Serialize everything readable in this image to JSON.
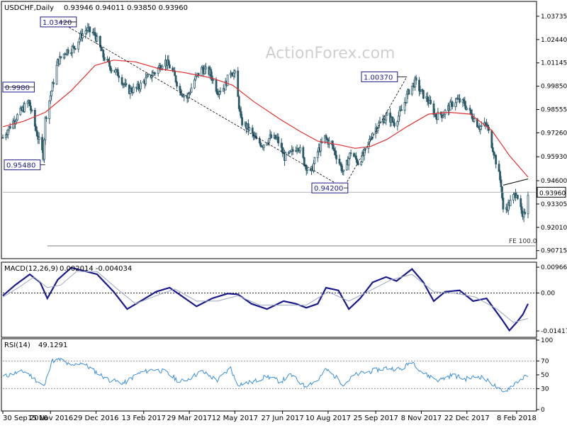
{
  "colors": {
    "background": "#ffffff",
    "candles": "#2a5a6a",
    "ma": "#e03030",
    "macd_line": "#1a1a8c",
    "macd_signal": "#9aa6c0",
    "rsi_line": "#3a8fd8",
    "frame": "#000000",
    "label_border": "#1a1a8c",
    "watermark": "#cfcfcf"
  },
  "header": {
    "symbol_tf": "USDCHF,Daily",
    "ohlc": "0.93946 0.94011 0.93850 0.93960",
    "watermark": "ActionForex.com"
  },
  "chart_data": [
    {
      "type": "candlestick",
      "title": "USDCHF,Daily",
      "ylim": [
        0.9035,
        1.0448
      ],
      "y_tick_labels": [
        "1.03735",
        "1.02440",
        "1.01145",
        "0.99850",
        "0.98555",
        "0.97260",
        "0.95930",
        "0.94600",
        "0.93305",
        "0.92010",
        "0.90715"
      ],
      "y_ticks": [
        1.03735,
        1.0244,
        1.01145,
        0.9985,
        0.98555,
        0.9726,
        0.9593,
        0.946,
        0.93305,
        0.9201,
        0.90715
      ],
      "x_tick_labels": [
        "30 Sep 2016",
        "15 Nov 2016",
        "29 Dec 2016",
        "13 Feb 2017",
        "29 Mar 2017",
        "12 May 2017",
        "27 Jun 2017",
        "10 Aug 2017",
        "25 Sep 2017",
        "8 Nov 2017",
        "22 Dec 2017",
        "8 Feb 2018"
      ],
      "x_tick_dates": [
        "2016-09-30",
        "2016-11-15",
        "2016-12-29",
        "2017-02-13",
        "2017-03-29",
        "2017-05-12",
        "2017-06-27",
        "2017-08-10",
        "2017-09-25",
        "2017-11-08",
        "2017-12-22",
        "2018-02-08"
      ],
      "x_range": [
        "2016-09-30",
        "2018-02-19"
      ],
      "close_path": [
        [
          "2016-09-30",
          0.97
        ],
        [
          "2016-10-10",
          0.979
        ],
        [
          "2016-10-25",
          0.99
        ],
        [
          "2016-11-01",
          0.974
        ],
        [
          "2016-11-08",
          0.96
        ],
        [
          "2016-11-10",
          0.98
        ],
        [
          "2016-11-22",
          1.012
        ],
        [
          "2016-11-30",
          1.018
        ],
        [
          "2016-12-08",
          1.02
        ],
        [
          "2016-12-15",
          1.027
        ],
        [
          "2016-12-20",
          1.03
        ],
        [
          "2016-12-28",
          1.027
        ],
        [
          "2017-01-05",
          1.015
        ],
        [
          "2017-01-12",
          1.009
        ],
        [
          "2017-01-20",
          1.005
        ],
        [
          "2017-01-28",
          0.996
        ],
        [
          "2017-02-06",
          0.997
        ],
        [
          "2017-02-15",
          1.002
        ],
        [
          "2017-02-25",
          1.007
        ],
        [
          "2017-03-05",
          1.013
        ],
        [
          "2017-03-12",
          1.008
        ],
        [
          "2017-03-20",
          0.996
        ],
        [
          "2017-03-27",
          0.992
        ],
        [
          "2017-04-03",
          1.002
        ],
        [
          "2017-04-10",
          1.008
        ],
        [
          "2017-04-18",
          1.006
        ],
        [
          "2017-04-25",
          0.996
        ],
        [
          "2017-05-02",
          0.998
        ],
        [
          "2017-05-08",
          1.007
        ],
        [
          "2017-05-12",
          1.005
        ],
        [
          "2017-05-18",
          0.979
        ],
        [
          "2017-05-25",
          0.975
        ],
        [
          "2017-06-02",
          0.968
        ],
        [
          "2017-06-08",
          0.966
        ],
        [
          "2017-06-15",
          0.97
        ],
        [
          "2017-06-22",
          0.969
        ],
        [
          "2017-06-29",
          0.959
        ],
        [
          "2017-07-05",
          0.961
        ],
        [
          "2017-07-12",
          0.966
        ],
        [
          "2017-07-18",
          0.956
        ],
        [
          "2017-07-24",
          0.95
        ],
        [
          "2017-07-31",
          0.962
        ],
        [
          "2017-08-07",
          0.97
        ],
        [
          "2017-08-14",
          0.965
        ],
        [
          "2017-08-21",
          0.956
        ],
        [
          "2017-08-25",
          0.95
        ],
        [
          "2017-09-01",
          0.962
        ],
        [
          "2017-09-08",
          0.956
        ],
        [
          "2017-09-15",
          0.962
        ],
        [
          "2017-09-22",
          0.973
        ],
        [
          "2017-09-29",
          0.978
        ],
        [
          "2017-10-06",
          0.982
        ],
        [
          "2017-10-13",
          0.978
        ],
        [
          "2017-10-20",
          0.985
        ],
        [
          "2017-10-27",
          0.996
        ],
        [
          "2017-11-02",
          1.001
        ],
        [
          "2017-11-08",
          0.995
        ],
        [
          "2017-11-15",
          0.99
        ],
        [
          "2017-11-22",
          0.982
        ],
        [
          "2017-11-29",
          0.983
        ],
        [
          "2017-12-05",
          0.987
        ],
        [
          "2017-12-12",
          0.991
        ],
        [
          "2017-12-19",
          0.989
        ],
        [
          "2017-12-27",
          0.982
        ],
        [
          "2018-01-03",
          0.976
        ],
        [
          "2018-01-10",
          0.977
        ],
        [
          "2018-01-17",
          0.962
        ],
        [
          "2018-01-24",
          0.944
        ],
        [
          "2018-01-26",
          0.929
        ],
        [
          "2018-02-02",
          0.934
        ],
        [
          "2018-02-08",
          0.94
        ],
        [
          "2018-02-14",
          0.924
        ],
        [
          "2018-02-16",
          0.929
        ],
        [
          "2018-02-19",
          0.9396
        ]
      ],
      "ma_path": [
        [
          "2016-09-30",
          0.976
        ],
        [
          "2016-10-20",
          0.979
        ],
        [
          "2016-11-10",
          0.984
        ],
        [
          "2016-12-05",
          0.996
        ],
        [
          "2016-12-28",
          1.01
        ],
        [
          "2017-01-15",
          1.013
        ],
        [
          "2017-02-05",
          1.012
        ],
        [
          "2017-03-01",
          1.008
        ],
        [
          "2017-03-25",
          1.006
        ],
        [
          "2017-04-20",
          1.003
        ],
        [
          "2017-05-10",
          0.999
        ],
        [
          "2017-05-30",
          0.99
        ],
        [
          "2017-06-25",
          0.98
        ],
        [
          "2017-07-15",
          0.973
        ],
        [
          "2017-07-31",
          0.968
        ],
        [
          "2017-08-20",
          0.966
        ],
        [
          "2017-09-05",
          0.964
        ],
        [
          "2017-09-20",
          0.965
        ],
        [
          "2017-10-06",
          0.969
        ],
        [
          "2017-10-25",
          0.976
        ],
        [
          "2017-11-15",
          0.983
        ],
        [
          "2017-12-05",
          0.984
        ],
        [
          "2017-12-25",
          0.983
        ],
        [
          "2018-01-15",
          0.974
        ],
        [
          "2018-02-01",
          0.96
        ],
        [
          "2018-02-19",
          0.948
        ]
      ],
      "marked_levels": [
        {
          "label": "1.03420",
          "date": "2016-11-24",
          "value": 1.0342,
          "side": "left"
        },
        {
          "label": "0.9980",
          "date": "2016-10-01",
          "value": 0.998,
          "side": "left"
        },
        {
          "label": "0.95480",
          "date": "2016-11-10",
          "value": 0.9548,
          "side": "left"
        },
        {
          "label": "0.94200",
          "date": "2017-08-25",
          "value": 0.942,
          "side": "left"
        },
        {
          "label": "1.00370",
          "date": "2017-10-25",
          "value": 1.0037,
          "side": "left"
        }
      ],
      "last_price": {
        "label": "0.93960",
        "value": 0.9396
      },
      "fe_line": {
        "label": "FE 100.0",
        "value": 0.9098,
        "from": "2016-11-12",
        "to": "2018-02-19"
      },
      "trendlines": [
        [
          [
            "2016-11-24",
            1.0342
          ],
          [
            "2017-08-25",
            0.942
          ]
        ],
        [
          [
            "2017-08-25",
            0.942
          ],
          [
            "2017-10-25",
            1.0037
          ]
        ],
        [
          [
            "2018-01-26",
            0.9435
          ],
          [
            "2018-02-19",
            0.947
          ]
        ]
      ]
    },
    {
      "type": "line",
      "title": "MACD(12,26,9)",
      "header_values": "0.002014 -0.004034",
      "ylim": [
        -0.016,
        0.011
      ],
      "y_tick_labels": [
        "0.009664",
        "0.00",
        "-0.014171"
      ],
      "y_ticks": [
        0.009664,
        0,
        -0.014171
      ],
      "zero_line": 0,
      "series": [
        {
          "role": "macd",
          "points": [
            [
              "2016-09-30",
              -0.001
            ],
            [
              "2016-10-12",
              0.003
            ],
            [
              "2016-10-26",
              0.007
            ],
            [
              "2016-11-05",
              0.004
            ],
            [
              "2016-11-12",
              -0.002
            ],
            [
              "2016-11-22",
              0.005
            ],
            [
              "2016-12-05",
              0.0095
            ],
            [
              "2016-12-20",
              0.008
            ],
            [
              "2016-12-30",
              0.007
            ],
            [
              "2017-01-15",
              0.0005
            ],
            [
              "2017-01-28",
              -0.006
            ],
            [
              "2017-02-10",
              -0.003
            ],
            [
              "2017-02-25",
              0.0005
            ],
            [
              "2017-03-10",
              0.002
            ],
            [
              "2017-03-25",
              -0.002
            ],
            [
              "2017-04-05",
              -0.005
            ],
            [
              "2017-04-20",
              -0.002
            ],
            [
              "2017-05-05",
              -0.0002
            ],
            [
              "2017-05-15",
              -0.0005
            ],
            [
              "2017-05-28",
              -0.004
            ],
            [
              "2017-06-12",
              -0.006
            ],
            [
              "2017-06-28",
              -0.003
            ],
            [
              "2017-07-10",
              -0.004
            ],
            [
              "2017-07-20",
              -0.0055
            ],
            [
              "2017-07-31",
              -0.004
            ],
            [
              "2017-08-08",
              0.002
            ],
            [
              "2017-08-20",
              0.001
            ],
            [
              "2017-08-30",
              -0.006
            ],
            [
              "2017-09-10",
              -0.002
            ],
            [
              "2017-09-22",
              0.004
            ],
            [
              "2017-10-05",
              0.006
            ],
            [
              "2017-10-15",
              0.0045
            ],
            [
              "2017-10-30",
              0.009
            ],
            [
              "2017-11-10",
              0.004
            ],
            [
              "2017-11-20",
              -0.003
            ],
            [
              "2017-12-01",
              0.0005
            ],
            [
              "2017-12-15",
              0.001
            ],
            [
              "2017-12-28",
              -0.003
            ],
            [
              "2018-01-10",
              -0.002
            ],
            [
              "2018-01-25",
              -0.01
            ],
            [
              "2018-02-01",
              -0.014
            ],
            [
              "2018-02-08",
              -0.011
            ],
            [
              "2018-02-14",
              -0.008
            ],
            [
              "2018-02-19",
              -0.004
            ]
          ]
        },
        {
          "role": "signal",
          "points": [
            [
              "2016-09-30",
              -0.0015
            ],
            [
              "2016-10-15",
              0.002
            ],
            [
              "2016-10-30",
              0.006
            ],
            [
              "2016-11-12",
              0.002
            ],
            [
              "2016-11-25",
              0.003
            ],
            [
              "2016-12-10",
              0.008
            ],
            [
              "2016-12-30",
              0.008
            ],
            [
              "2017-01-20",
              0.001
            ],
            [
              "2017-02-05",
              -0.004
            ],
            [
              "2017-02-25",
              -0.001
            ],
            [
              "2017-03-15",
              0.0015
            ],
            [
              "2017-04-05",
              -0.003
            ],
            [
              "2017-04-25",
              -0.003
            ],
            [
              "2017-05-15",
              -0.001
            ],
            [
              "2017-06-05",
              -0.0045
            ],
            [
              "2017-06-28",
              -0.0045
            ],
            [
              "2017-07-20",
              -0.0045
            ],
            [
              "2017-08-10",
              0.0005
            ],
            [
              "2017-08-30",
              -0.003
            ],
            [
              "2017-09-20",
              0.001
            ],
            [
              "2017-10-10",
              0.005
            ],
            [
              "2017-10-30",
              0.007
            ],
            [
              "2017-11-20",
              0.0005
            ],
            [
              "2017-12-10",
              0.0
            ],
            [
              "2017-12-30",
              -0.0015
            ],
            [
              "2018-01-20",
              -0.006
            ],
            [
              "2018-02-05",
              -0.011
            ],
            [
              "2018-02-19",
              -0.0095
            ]
          ]
        }
      ]
    },
    {
      "type": "line",
      "title": "RSI(14)",
      "header_values": "49.1291",
      "ylim": [
        0,
        100
      ],
      "y_tick_labels": [
        "100",
        "70",
        "50",
        "30",
        "0"
      ],
      "y_ticks": [
        100,
        70,
        50,
        30,
        0
      ],
      "levels": [
        70,
        30
      ],
      "series": [
        {
          "role": "rsi",
          "points": [
            [
              "2016-09-30",
              47
            ],
            [
              "2016-10-10",
              52
            ],
            [
              "2016-10-22",
              55
            ],
            [
              "2016-11-03",
              40
            ],
            [
              "2016-11-09",
              33
            ],
            [
              "2016-11-16",
              70
            ],
            [
              "2016-11-25",
              72
            ],
            [
              "2016-12-05",
              62
            ],
            [
              "2016-12-15",
              68
            ],
            [
              "2016-12-28",
              55
            ],
            [
              "2017-01-10",
              43
            ],
            [
              "2017-01-25",
              38
            ],
            [
              "2017-02-08",
              52
            ],
            [
              "2017-02-22",
              58
            ],
            [
              "2017-03-05",
              55
            ],
            [
              "2017-03-20",
              40
            ],
            [
              "2017-03-29",
              45
            ],
            [
              "2017-04-10",
              55
            ],
            [
              "2017-04-25",
              42
            ],
            [
              "2017-05-08",
              60
            ],
            [
              "2017-05-14",
              36
            ],
            [
              "2017-05-30",
              40
            ],
            [
              "2017-06-12",
              48
            ],
            [
              "2017-06-25",
              40
            ],
            [
              "2017-07-05",
              50
            ],
            [
              "2017-07-18",
              34
            ],
            [
              "2017-07-31",
              42
            ],
            [
              "2017-08-08",
              58
            ],
            [
              "2017-08-18",
              46
            ],
            [
              "2017-08-25",
              36
            ],
            [
              "2017-09-05",
              50
            ],
            [
              "2017-09-20",
              55
            ],
            [
              "2017-10-05",
              60
            ],
            [
              "2017-10-20",
              58
            ],
            [
              "2017-10-30",
              70
            ],
            [
              "2017-11-10",
              52
            ],
            [
              "2017-11-25",
              42
            ],
            [
              "2017-12-08",
              50
            ],
            [
              "2017-12-20",
              44
            ],
            [
              "2018-01-03",
              48
            ],
            [
              "2018-01-15",
              38
            ],
            [
              "2018-01-26",
              24
            ],
            [
              "2018-02-02",
              33
            ],
            [
              "2018-02-10",
              42
            ],
            [
              "2018-02-14",
              45
            ],
            [
              "2018-02-19",
              49.1
            ]
          ]
        }
      ]
    }
  ]
}
